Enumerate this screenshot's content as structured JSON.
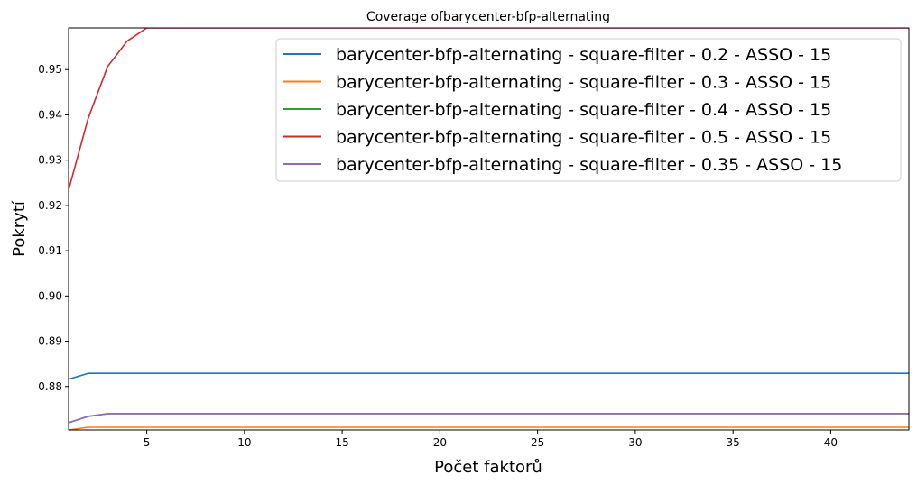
{
  "chart_data": {
    "type": "line",
    "title": "Coverage ofbarycenter-bfp-alternating",
    "xlabel": "Počet faktorů",
    "ylabel": "Pokrytí",
    "xlim": [
      1,
      44
    ],
    "ylim": [
      0.8704,
      0.9592
    ],
    "xticks": [
      5,
      10,
      15,
      20,
      25,
      30,
      35,
      40
    ],
    "xtick_labels": [
      "5",
      "10",
      "15",
      "20",
      "25",
      "30",
      "35",
      "40"
    ],
    "yticks": [
      0.88,
      0.89,
      0.9,
      0.91,
      0.92,
      0.93,
      0.94,
      0.95
    ],
    "ytick_labels": [
      "0.88",
      "0.89",
      "0.90",
      "0.91",
      "0.92",
      "0.93",
      "0.94",
      "0.95"
    ],
    "grid": false,
    "legend_position": "top-right",
    "series": [
      {
        "name": "barycenter-bfp-alternating - square-filter - 0.2 - ASSO - 15",
        "color": "#1f77b4",
        "points": [
          [
            1,
            0.8816
          ],
          [
            2,
            0.8829
          ],
          [
            3,
            0.8829
          ],
          [
            44,
            0.8829
          ]
        ]
      },
      {
        "name": "barycenter-bfp-alternating - square-filter - 0.3 - ASSO - 15",
        "color": "#ff7f0e",
        "points": [
          [
            1,
            0.8704
          ],
          [
            2,
            0.871
          ],
          [
            3,
            0.871
          ],
          [
            44,
            0.871
          ]
        ]
      },
      {
        "name": "barycenter-bfp-alternating - square-filter - 0.4 - ASSO - 15",
        "color": "#2ca02c",
        "points": [
          [
            1,
            0.872
          ],
          [
            2,
            0.8734
          ],
          [
            3,
            0.874
          ],
          [
            44,
            0.874
          ]
        ]
      },
      {
        "name": "barycenter-bfp-alternating - square-filter - 0.5 - ASSO - 15",
        "color": "#d62728",
        "points": [
          [
            1,
            0.9234
          ],
          [
            2,
            0.9392
          ],
          [
            3,
            0.9507
          ],
          [
            4,
            0.9563
          ],
          [
            5,
            0.9592
          ],
          [
            44,
            0.9592
          ]
        ]
      },
      {
        "name": "barycenter-bfp-alternating - square-filter - 0.35 - ASSO - 15",
        "color": "#9467bd",
        "points": [
          [
            1,
            0.872
          ],
          [
            2,
            0.8734
          ],
          [
            3,
            0.874
          ],
          [
            44,
            0.874
          ]
        ]
      }
    ]
  }
}
